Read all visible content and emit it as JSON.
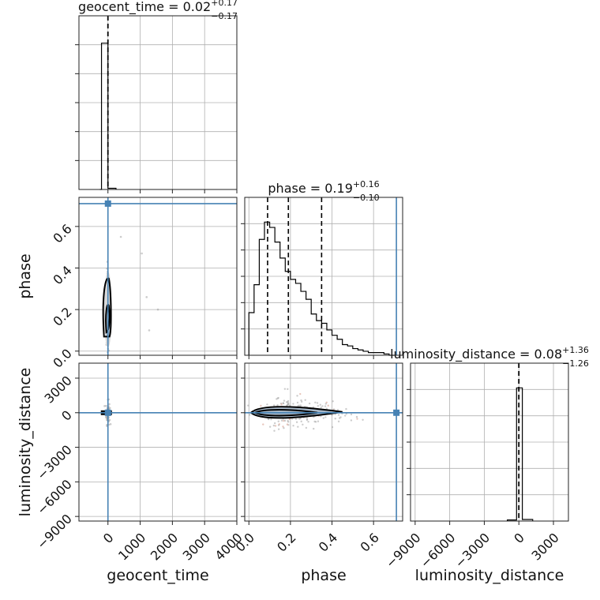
{
  "chart_data": {
    "type": "corner",
    "parameters": [
      "geocent_time",
      "phase",
      "luminosity_distance"
    ],
    "truths": {
      "geocent_time": 0.0,
      "phase": 0.71,
      "luminosity_distance": 0.0
    },
    "titles": [
      {
        "param": "geocent_time",
        "text": "geocent_time = 0.02",
        "plus": "+0.17",
        "minus": "−0.17"
      },
      {
        "param": "phase",
        "text": "phase = 0.19",
        "plus": "+0.16",
        "minus": "−0.10"
      },
      {
        "param": "luminosity_distance",
        "text": "luminosity_distance = 0.08",
        "plus": "+1.36",
        "minus": "−1.26"
      }
    ],
    "axes": {
      "geocent_time": {
        "label": "geocent_time",
        "range": [
          -900,
          4000
        ],
        "ticks": [
          0,
          1000,
          2000,
          3000,
          4000
        ],
        "tick_labels": [
          "0",
          "1000",
          "2000",
          "3000",
          "4000"
        ]
      },
      "phase": {
        "label": "phase",
        "range": [
          -0.02,
          0.74
        ],
        "ticks": [
          0.0,
          0.2,
          0.4,
          0.6
        ],
        "tick_labels": [
          "0.0",
          "0.2",
          "0.4",
          "0.6"
        ]
      },
      "luminosity_distance": {
        "label": "luminosity_distance",
        "range": [
          -9400,
          4300
        ],
        "ticks": [
          -9000,
          -6000,
          -3000,
          0,
          3000
        ],
        "tick_labels": [
          "−9000",
          "−6000",
          "−3000",
          "0",
          "3000"
        ]
      }
    },
    "histograms": {
      "geocent_time": {
        "edges": [
          -250,
          -200,
          0,
          250
        ],
        "counts": [
          0,
          100,
          0.8
        ]
      },
      "phase": {
        "edges": [
          0.0,
          0.025,
          0.05,
          0.075,
          0.1,
          0.125,
          0.15,
          0.175,
          0.2,
          0.225,
          0.25,
          0.275,
          0.3,
          0.325,
          0.35,
          0.375,
          0.4,
          0.425,
          0.45,
          0.475,
          0.5,
          0.525,
          0.55,
          0.575,
          0.6,
          0.625,
          0.65,
          0.675,
          0.7
        ],
        "counts": [
          32,
          53,
          87,
          100,
          96,
          85,
          73,
          63,
          57,
          54,
          48,
          42,
          31,
          26,
          24,
          19,
          15,
          12,
          8,
          7,
          5,
          4,
          3,
          2,
          2,
          2,
          1,
          0
        ]
      },
      "luminosity_distance": {
        "edges": [
          -1000,
          -200,
          300,
          1200
        ],
        "counts": [
          0.8,
          100,
          1.2
        ]
      }
    },
    "quantiles": {
      "geocent_time": [
        -0.15,
        0.02,
        0.19
      ],
      "phase": [
        0.09,
        0.19,
        0.35
      ],
      "luminosity_distance": [
        -1.18,
        0.08,
        1.44
      ]
    },
    "grid": true
  }
}
